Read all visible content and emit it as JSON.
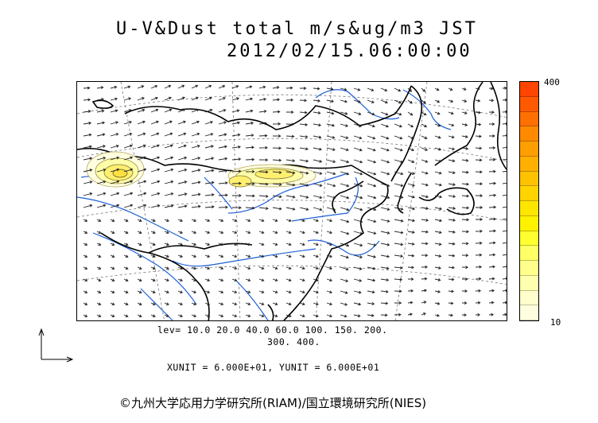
{
  "title": {
    "line1": "U-V&Dust total m/s&ug/m3 JST",
    "line2": "2012/02/15.06:00:00"
  },
  "colorbar": {
    "max_label": "400",
    "min_label": "10",
    "colors": [
      "#ff4500",
      "#ff5a00",
      "#ff7000",
      "#ff8a00",
      "#ff9e00",
      "#ffb000",
      "#ffc200",
      "#ffd400",
      "#ffe600",
      "#fff200",
      "#ffff30",
      "#ffff66",
      "#ffff8c",
      "#ffffb0",
      "#ffffcc",
      "#ffffe0"
    ]
  },
  "legend": {
    "lev_line1": "lev= 10.0 20.0 40.0 60.0 100. 150. 200.",
    "lev_line2": "300. 400.",
    "unit_line": "XUNIT = 6.000E+01, YUNIT = 6.000E+01"
  },
  "dust_plumes": [
    {
      "name": "western-plume",
      "level": 40
    },
    {
      "name": "north-china-plume",
      "level": 40
    }
  ],
  "copyright": "©九州大学応用力学研究所(RIAM)/国立環境研究所(NIES)"
}
